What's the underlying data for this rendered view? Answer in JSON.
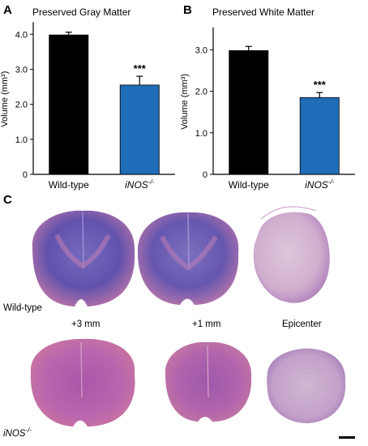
{
  "panels": [
    {
      "letter": "A",
      "title": "Preserved Gray Matter",
      "chart_data": {
        "type": "bar",
        "title": "Preserved Gray Matter",
        "ylabel": "Volume (mm³)",
        "categories": [
          "Wild-type",
          "iNOS-/-"
        ],
        "values": [
          3.98,
          2.55
        ],
        "errors": [
          0.08,
          0.25
        ],
        "ylim": [
          0,
          4.3
        ],
        "yticks": [
          "0",
          "1.0",
          "2.0",
          "3.0",
          "4.0"
        ],
        "colors": [
          "#000000",
          "#1f6cb8"
        ],
        "annotations": [
          "",
          "***"
        ]
      }
    },
    {
      "letter": "B",
      "title": "Preserved White Matter",
      "chart_data": {
        "type": "bar",
        "title": "Preserved White Matter",
        "ylabel": "Volume (mm³)",
        "categories": [
          "Wild-type",
          "iNOS-/-"
        ],
        "values": [
          2.98,
          1.85
        ],
        "errors": [
          0.1,
          0.12
        ],
        "ylim": [
          0,
          3.5
        ],
        "yticks": [
          "0",
          "1.0",
          "2.0",
          "3.0"
        ],
        "colors": [
          "#000000",
          "#1f6cb8"
        ],
        "annotations": [
          "",
          "***"
        ]
      }
    }
  ],
  "panel_c": {
    "letter": "C",
    "row_labels": [
      "Wild-type",
      "iNOS-/-"
    ],
    "positions": [
      "+3 mm",
      "+1 mm",
      "Epicenter"
    ]
  }
}
